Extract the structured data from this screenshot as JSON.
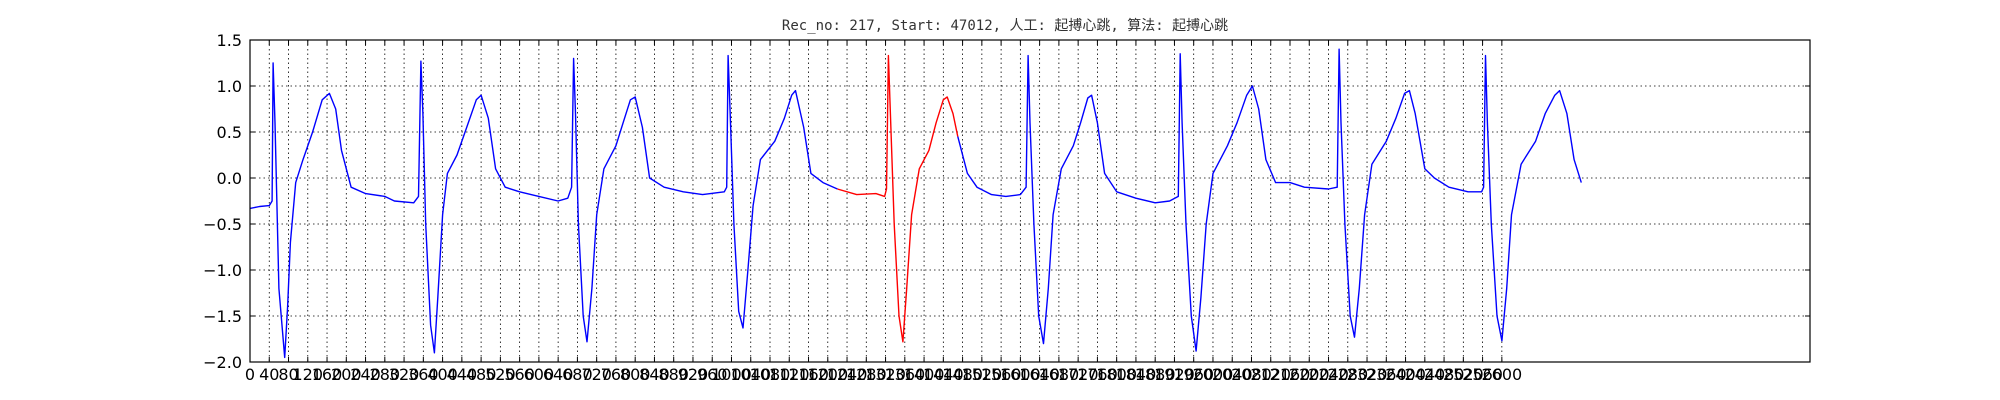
{
  "chart_data": {
    "type": "line",
    "title": "Rec_no: 217, Start: 47012, 人工: 起搏心跳, 算法: 起搏心跳",
    "xlabel": "",
    "ylabel": "",
    "xlim": [
      0,
      3240
    ],
    "ylim": [
      -2.0,
      1.5
    ],
    "grid": true,
    "y_ticks": [
      -2.0,
      -1.5,
      -1.0,
      -0.5,
      0.0,
      0.5,
      1.0,
      1.5
    ],
    "y_tick_labels": [
      "−2.0",
      "−1.5",
      "−1.0",
      "−0.5",
      "0.0",
      "0.5",
      "1.0",
      "1.5"
    ],
    "x_ticks": [
      0,
      40,
      80,
      120,
      160,
      200,
      240,
      280,
      320,
      360,
      400,
      440,
      480,
      520,
      560,
      600,
      640,
      680,
      720,
      760,
      800,
      840,
      880,
      920,
      960,
      1000,
      1040,
      1080,
      1120,
      1160,
      1200,
      1240,
      1280,
      1320,
      1360,
      1400,
      1440,
      1480,
      1520,
      1560,
      1600,
      1640,
      1680,
      1720,
      1760,
      1800,
      1840,
      1880,
      1920,
      1960,
      2000,
      2040,
      2080,
      2120,
      2160,
      2200,
      2240,
      2280,
      2320,
      2360,
      2400,
      2440,
      2480,
      2520,
      2560,
      2600
    ],
    "x_tick_labels": [
      "0",
      "40",
      "80",
      "120",
      "160",
      "200",
      "240",
      "280",
      "320",
      "360",
      "400",
      "440",
      "480",
      "520",
      "560",
      "600",
      "640",
      "680",
      "720",
      "760",
      "800",
      "840",
      "880",
      "920",
      "960",
      "1000",
      "1040",
      "1080",
      "1120",
      "1160",
      "1200",
      "1240",
      "1280",
      "1320",
      "1360",
      "1400",
      "1440",
      "1480",
      "1520",
      "1560",
      "1600",
      "1640",
      "1680",
      "1720",
      "1760",
      "1800",
      "1840",
      "1880",
      "1920",
      "1960",
      "2000",
      "2040",
      "2080",
      "2120",
      "2160",
      "2200",
      "2240",
      "2280",
      "2320",
      "2360",
      "2400",
      "2440",
      "2480",
      "2520",
      "2560",
      "2600"
    ],
    "series": [
      {
        "color": "#0000ff",
        "points": [
          [
            0,
            -0.33
          ],
          [
            20,
            -0.31
          ],
          [
            40,
            -0.3
          ],
          [
            46,
            -0.25
          ],
          [
            48,
            1.25
          ],
          [
            52,
            0.6
          ],
          [
            60,
            -1.2
          ],
          [
            72,
            -1.95
          ],
          [
            78,
            -1.4
          ],
          [
            84,
            -0.7
          ],
          [
            95,
            -0.05
          ],
          [
            110,
            0.2
          ],
          [
            130,
            0.5
          ],
          [
            150,
            0.85
          ],
          [
            165,
            0.92
          ],
          [
            178,
            0.75
          ],
          [
            190,
            0.3
          ],
          [
            210,
            -0.1
          ],
          [
            240,
            -0.17
          ],
          [
            280,
            -0.2
          ],
          [
            300,
            -0.25
          ],
          [
            340,
            -0.27
          ],
          [
            350,
            -0.2
          ],
          [
            355,
            1.27
          ],
          [
            359,
            0.7
          ],
          [
            365,
            -0.5
          ],
          [
            375,
            -1.6
          ],
          [
            383,
            -1.9
          ],
          [
            390,
            -1.3
          ],
          [
            400,
            -0.4
          ],
          [
            410,
            0.05
          ],
          [
            430,
            0.25
          ],
          [
            450,
            0.55
          ],
          [
            470,
            0.85
          ],
          [
            480,
            0.9
          ],
          [
            495,
            0.65
          ],
          [
            510,
            0.1
          ],
          [
            530,
            -0.1
          ],
          [
            560,
            -0.15
          ],
          [
            600,
            -0.2
          ],
          [
            640,
            -0.25
          ],
          [
            660,
            -0.22
          ],
          [
            668,
            -0.1
          ],
          [
            672,
            1.3
          ],
          [
            676,
            0.7
          ],
          [
            682,
            -0.5
          ],
          [
            692,
            -1.5
          ],
          [
            700,
            -1.78
          ],
          [
            710,
            -1.2
          ],
          [
            720,
            -0.4
          ],
          [
            735,
            0.1
          ],
          [
            760,
            0.35
          ],
          [
            775,
            0.6
          ],
          [
            790,
            0.85
          ],
          [
            800,
            0.88
          ],
          [
            815,
            0.55
          ],
          [
            830,
            0.0
          ],
          [
            860,
            -0.1
          ],
          [
            900,
            -0.15
          ],
          [
            940,
            -0.18
          ],
          [
            985,
            -0.15
          ],
          [
            990,
            -0.1
          ],
          [
            993,
            1.33
          ],
          [
            998,
            0.6
          ],
          [
            1005,
            -0.5
          ],
          [
            1015,
            -1.45
          ],
          [
            1024,
            -1.63
          ],
          [
            1034,
            -1.0
          ],
          [
            1045,
            -0.3
          ],
          [
            1060,
            0.2
          ],
          [
            1090,
            0.4
          ],
          [
            1110,
            0.65
          ],
          [
            1125,
            0.9
          ],
          [
            1133,
            0.95
          ],
          [
            1150,
            0.55
          ],
          [
            1165,
            0.05
          ],
          [
            1190,
            -0.05
          ],
          [
            1220,
            -0.12
          ]
        ]
      },
      {
        "color": "#ff0000",
        "points": [
          [
            1220,
            -0.12
          ],
          [
            1260,
            -0.18
          ],
          [
            1300,
            -0.17
          ],
          [
            1318,
            -0.2
          ],
          [
            1322,
            -0.12
          ],
          [
            1326,
            1.33
          ],
          [
            1330,
            0.7
          ],
          [
            1338,
            -0.5
          ],
          [
            1348,
            -1.5
          ],
          [
            1356,
            -1.78
          ],
          [
            1364,
            -1.2
          ],
          [
            1374,
            -0.4
          ],
          [
            1390,
            0.1
          ],
          [
            1410,
            0.3
          ],
          [
            1425,
            0.6
          ],
          [
            1440,
            0.85
          ],
          [
            1448,
            0.88
          ],
          [
            1460,
            0.7
          ],
          [
            1470,
            0.45
          ]
        ]
      },
      {
        "color": "#0000ff",
        "points": [
          [
            1470,
            0.45
          ],
          [
            1490,
            0.05
          ],
          [
            1510,
            -0.1
          ],
          [
            1540,
            -0.18
          ],
          [
            1570,
            -0.2
          ],
          [
            1600,
            -0.18
          ],
          [
            1612,
            -0.1
          ],
          [
            1616,
            1.33
          ],
          [
            1620,
            0.6
          ],
          [
            1628,
            -0.5
          ],
          [
            1638,
            -1.5
          ],
          [
            1648,
            -1.8
          ],
          [
            1658,
            -1.2
          ],
          [
            1668,
            -0.4
          ],
          [
            1685,
            0.1
          ],
          [
            1710,
            0.35
          ],
          [
            1725,
            0.6
          ],
          [
            1740,
            0.87
          ],
          [
            1748,
            0.9
          ],
          [
            1760,
            0.6
          ],
          [
            1775,
            0.05
          ],
          [
            1800,
            -0.15
          ],
          [
            1840,
            -0.22
          ],
          [
            1880,
            -0.27
          ],
          [
            1910,
            -0.25
          ],
          [
            1928,
            -0.2
          ],
          [
            1932,
            1.35
          ],
          [
            1936,
            0.6
          ],
          [
            1944,
            -0.5
          ],
          [
            1955,
            -1.5
          ],
          [
            1965,
            -1.88
          ],
          [
            1975,
            -1.3
          ],
          [
            1986,
            -0.5
          ],
          [
            2000,
            0.05
          ],
          [
            2030,
            0.35
          ],
          [
            2050,
            0.6
          ],
          [
            2070,
            0.9
          ],
          [
            2082,
            1.0
          ],
          [
            2095,
            0.75
          ],
          [
            2110,
            0.2
          ],
          [
            2130,
            -0.05
          ],
          [
            2160,
            -0.05
          ],
          [
            2190,
            -0.1
          ],
          [
            2240,
            -0.12
          ],
          [
            2258,
            -0.1
          ],
          [
            2262,
            1.4
          ],
          [
            2266,
            0.6
          ],
          [
            2274,
            -0.5
          ],
          [
            2285,
            -1.5
          ],
          [
            2294,
            -1.73
          ],
          [
            2304,
            -1.2
          ],
          [
            2315,
            -0.4
          ],
          [
            2330,
            0.15
          ],
          [
            2360,
            0.4
          ],
          [
            2380,
            0.65
          ],
          [
            2398,
            0.92
          ],
          [
            2408,
            0.95
          ],
          [
            2420,
            0.7
          ],
          [
            2440,
            0.1
          ],
          [
            2460,
            0.0
          ],
          [
            2490,
            -0.1
          ],
          [
            2530,
            -0.15
          ],
          [
            2558,
            -0.15
          ],
          [
            2562,
            -0.1
          ],
          [
            2566,
            1.33
          ],
          [
            2570,
            0.6
          ],
          [
            2578,
            -0.5
          ],
          [
            2590,
            -1.5
          ],
          [
            2600,
            -1.77
          ],
          [
            2610,
            -1.2
          ],
          [
            2620,
            -0.4
          ],
          [
            2640,
            0.15
          ],
          [
            2670,
            0.4
          ],
          [
            2690,
            0.7
          ],
          [
            2710,
            0.9
          ],
          [
            2720,
            0.95
          ],
          [
            2735,
            0.7
          ],
          [
            2750,
            0.2
          ],
          [
            2765,
            -0.05
          ]
        ]
      }
    ]
  }
}
